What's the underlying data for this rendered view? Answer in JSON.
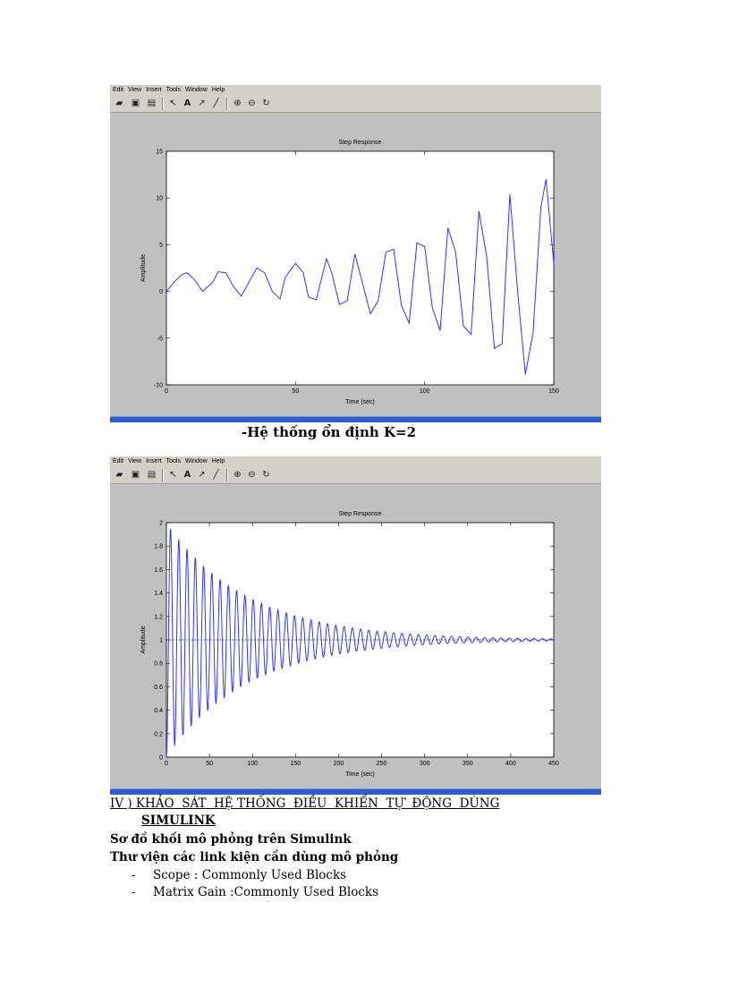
{
  "window": {
    "menu": [
      "Edit",
      "View",
      "Insert",
      "Tools",
      "Window",
      "Help"
    ],
    "toolbar_icons": [
      "open-icon",
      "save-icon",
      "print-icon",
      "pointer-icon",
      "text-icon",
      "arrow-icon",
      "line-icon",
      "zoom-in-icon",
      "zoom-out-icon",
      "rotate-icon"
    ]
  },
  "caption": "-Hệ thống ổn định K=2",
  "section": {
    "heading_line1": "IV ) KHẢO  SÁT  HỆ THỐNG  ĐIỀU  KHIỂN  TỰ  ĐỘNG  DÙNG",
    "heading_line2": "SIMULINK",
    "line_a": "Sơ đồ khối mô phỏng trên Simulink",
    "line_b": "Thư  viện các link kiện cần dùng mô phỏng",
    "bullets": [
      {
        "dash": "-",
        "text": "Scope : Commonly Used Blocks"
      },
      {
        "dash": "-",
        "text": "Matrix Gain :Commonly Used Blocks"
      }
    ]
  },
  "colors": {
    "line": "#3333ff",
    "figure_bg": "#c0c0c0",
    "taskbar": "#2d5ec8"
  },
  "chart_data": [
    {
      "type": "line",
      "title": "Step Response",
      "xlabel": "Time (sec)",
      "ylabel": "Amplitude",
      "xlim": [
        0,
        150
      ],
      "ylim": [
        -10,
        15
      ],
      "xticks": [
        0,
        50,
        100,
        150
      ],
      "yticks": [
        -10,
        -5,
        0,
        5,
        10,
        15
      ],
      "series": [
        {
          "x": [
            0,
            3,
            6,
            8,
            11,
            14,
            18,
            20,
            23,
            26,
            29,
            32,
            35,
            38,
            41,
            44,
            46,
            50,
            53,
            55,
            58,
            62,
            64,
            67,
            70,
            73,
            76,
            79,
            82,
            85,
            88,
            91,
            94,
            97,
            100,
            103,
            106,
            109,
            112,
            115,
            118,
            121,
            124,
            127,
            130,
            133,
            136,
            139,
            142,
            145,
            147,
            150
          ],
          "y": [
            0,
            1.0,
            1.8,
            2.0,
            1.2,
            0,
            1.0,
            2.1,
            2.0,
            0.5,
            -0.5,
            1.0,
            2.5,
            2.0,
            0,
            -0.8,
            1.5,
            3.0,
            2.0,
            -0.6,
            -0.9,
            3.5,
            2.0,
            -1.4,
            -1.0,
            4.0,
            0.8,
            -2.4,
            -1.0,
            4.2,
            4.5,
            -1.5,
            -3.4,
            5.2,
            4.8,
            -1.8,
            -4.2,
            6.8,
            4.2,
            -3.7,
            -4.6,
            8.6,
            3.8,
            -6.1,
            -5.6,
            10.4,
            0,
            -8.9,
            -4.4,
            9.0,
            12.0,
            3.0
          ]
        }
      ]
    },
    {
      "type": "line",
      "title": "Step Response",
      "xlabel": "Time (sec)",
      "ylabel": "Amplitude",
      "xlim": [
        0,
        450
      ],
      "ylim": [
        0,
        2
      ],
      "xticks": [
        0,
        50,
        100,
        150,
        200,
        250,
        300,
        350,
        400,
        450
      ],
      "yticks": [
        0,
        0.2,
        0.4,
        0.6,
        0.8,
        1,
        1.2,
        1.4,
        1.6,
        1.8,
        2
      ],
      "ytick_labels": [
        "0",
        "0.2",
        "0.4",
        "0.6",
        "0.8",
        "1",
        "1.2",
        "1.4",
        "1.6",
        "1.8",
        "2"
      ],
      "reference_line": 1,
      "series": [
        {
          "model": "damped_oscillation",
          "final_value": 1,
          "initial_amplitude": 1,
          "decay_time": 95,
          "period": 9.6
        }
      ]
    }
  ]
}
